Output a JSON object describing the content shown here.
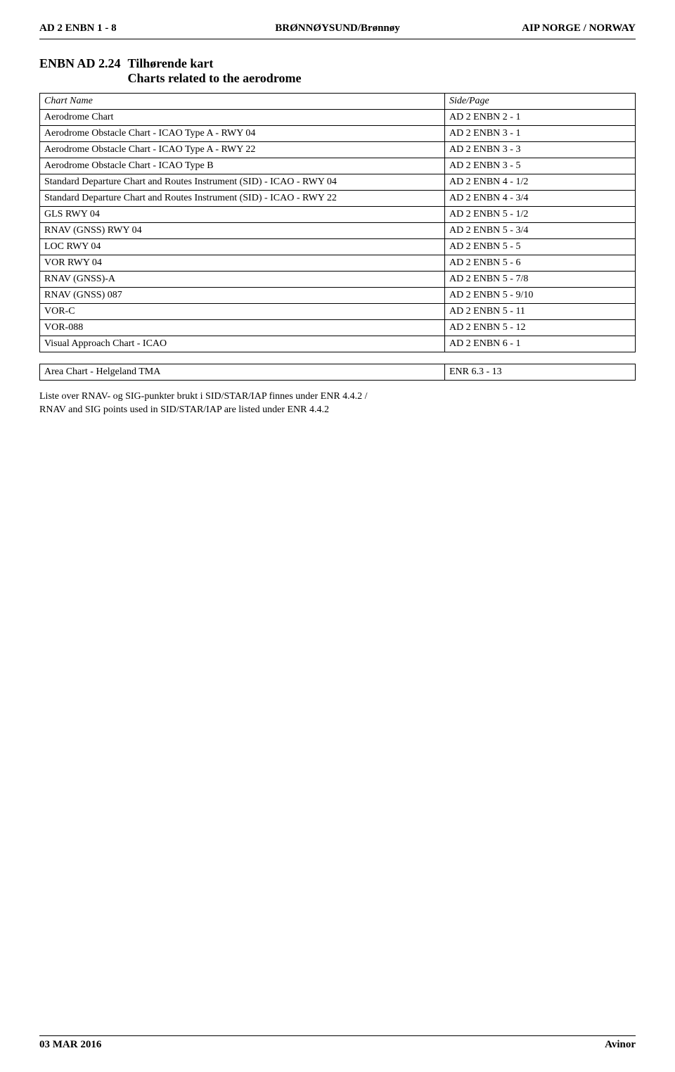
{
  "header": {
    "left": "AD 2 ENBN 1 - 8",
    "center": "BRØNNØYSUND/Brønnøy",
    "right": "AIP NORGE / NORWAY"
  },
  "section": {
    "code": "ENBN AD 2.24",
    "title": "Tilhørende kart",
    "subtitle": "Charts related to the aerodrome"
  },
  "table": {
    "col_name": "Chart Name",
    "col_page": "Side/Page",
    "rows": [
      {
        "name": "Aerodrome Chart",
        "page": "AD 2 ENBN 2 - 1"
      },
      {
        "name": "Aerodrome Obstacle Chart - ICAO Type A - RWY 04",
        "page": "AD 2 ENBN 3 - 1"
      },
      {
        "name": "Aerodrome Obstacle Chart - ICAO Type A - RWY 22",
        "page": "AD 2 ENBN 3 - 3"
      },
      {
        "name": "Aerodrome Obstacle Chart - ICAO Type B",
        "page": "AD 2 ENBN 3 - 5"
      },
      {
        "name": "Standard Departure Chart and Routes Instrument (SID) - ICAO - RWY 04",
        "page": "AD 2 ENBN 4 - 1/2"
      },
      {
        "name": "Standard Departure Chart and Routes Instrument (SID) - ICAO - RWY 22",
        "page": "AD 2 ENBN 4 - 3/4"
      },
      {
        "name": "GLS RWY 04",
        "page": "AD 2 ENBN 5 - 1/2"
      },
      {
        "name": "RNAV (GNSS) RWY 04",
        "page": "AD 2 ENBN 5 - 3/4"
      },
      {
        "name": "LOC RWY 04",
        "page": "AD 2 ENBN 5 - 5"
      },
      {
        "name": "VOR RWY 04",
        "page": "AD 2 ENBN 5 - 6"
      },
      {
        "name": "RNAV (GNSS)-A",
        "page": "AD 2 ENBN 5 - 7/8"
      },
      {
        "name": "RNAV (GNSS) 087",
        "page": "AD 2 ENBN 5 - 9/10"
      },
      {
        "name": "VOR-C",
        "page": "AD 2 ENBN 5 - 11"
      },
      {
        "name": "VOR-088",
        "page": "AD 2 ENBN 5 - 12"
      },
      {
        "name": "Visual Approach Chart - ICAO",
        "page": "AD 2 ENBN 6 - 1"
      }
    ]
  },
  "area_table": {
    "rows": [
      {
        "name": "Area Chart - Helgeland TMA",
        "page": "ENR 6.3 - 13"
      }
    ]
  },
  "footnote": {
    "line1": "Liste over RNAV- og SIG-punkter brukt i SID/STAR/IAP finnes under ENR 4.4.2 /",
    "line2": "RNAV and SIG points used in SID/STAR/IAP are listed under ENR 4.4.2"
  },
  "footer": {
    "left": "03 MAR 2016",
    "right": "Avinor"
  }
}
